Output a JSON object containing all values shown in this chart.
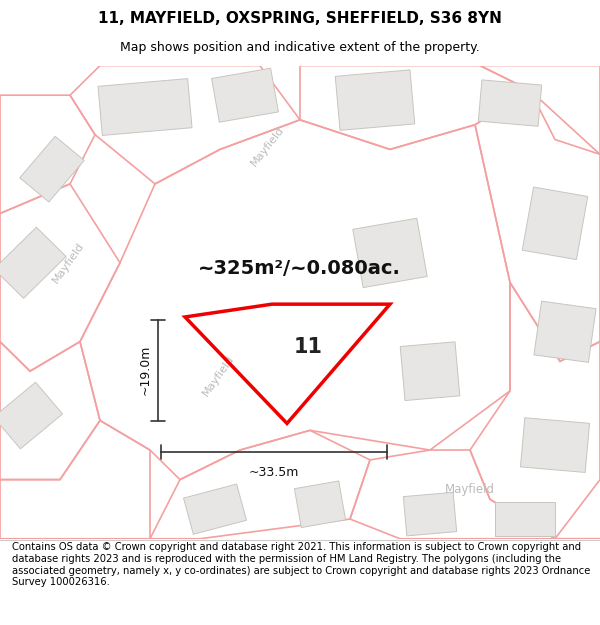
{
  "title": "11, MAYFIELD, OXSPRING, SHEFFIELD, S36 8YN",
  "subtitle": "Map shows position and indicative extent of the property.",
  "area_label": "~325m²/~0.080ac.",
  "property_number": "11",
  "width_label": "~33.5m",
  "height_label": "~19.0m",
  "footer": "Contains OS data © Crown copyright and database right 2021. This information is subject to Crown copyright and database rights 2023 and is reproduced with the permission of HM Land Registry. The polygons (including the associated geometry, namely x, y co-ordinates) are subject to Crown copyright and database rights 2023 Ordnance Survey 100026316.",
  "map_bg": "#ffffff",
  "road_color": "#f5a0a0",
  "building_fill": "#e8e6e4",
  "building_stroke": "#c8c5c0",
  "property_color": "#ee0000",
  "dimension_color": "#333333",
  "road_label_color": "#cccccc",
  "title_fontsize": 11,
  "subtitle_fontsize": 9,
  "area_fontsize": 14,
  "number_fontsize": 15,
  "dim_fontsize": 9,
  "footer_fontsize": 7.2,
  "road_lw": 1.2
}
